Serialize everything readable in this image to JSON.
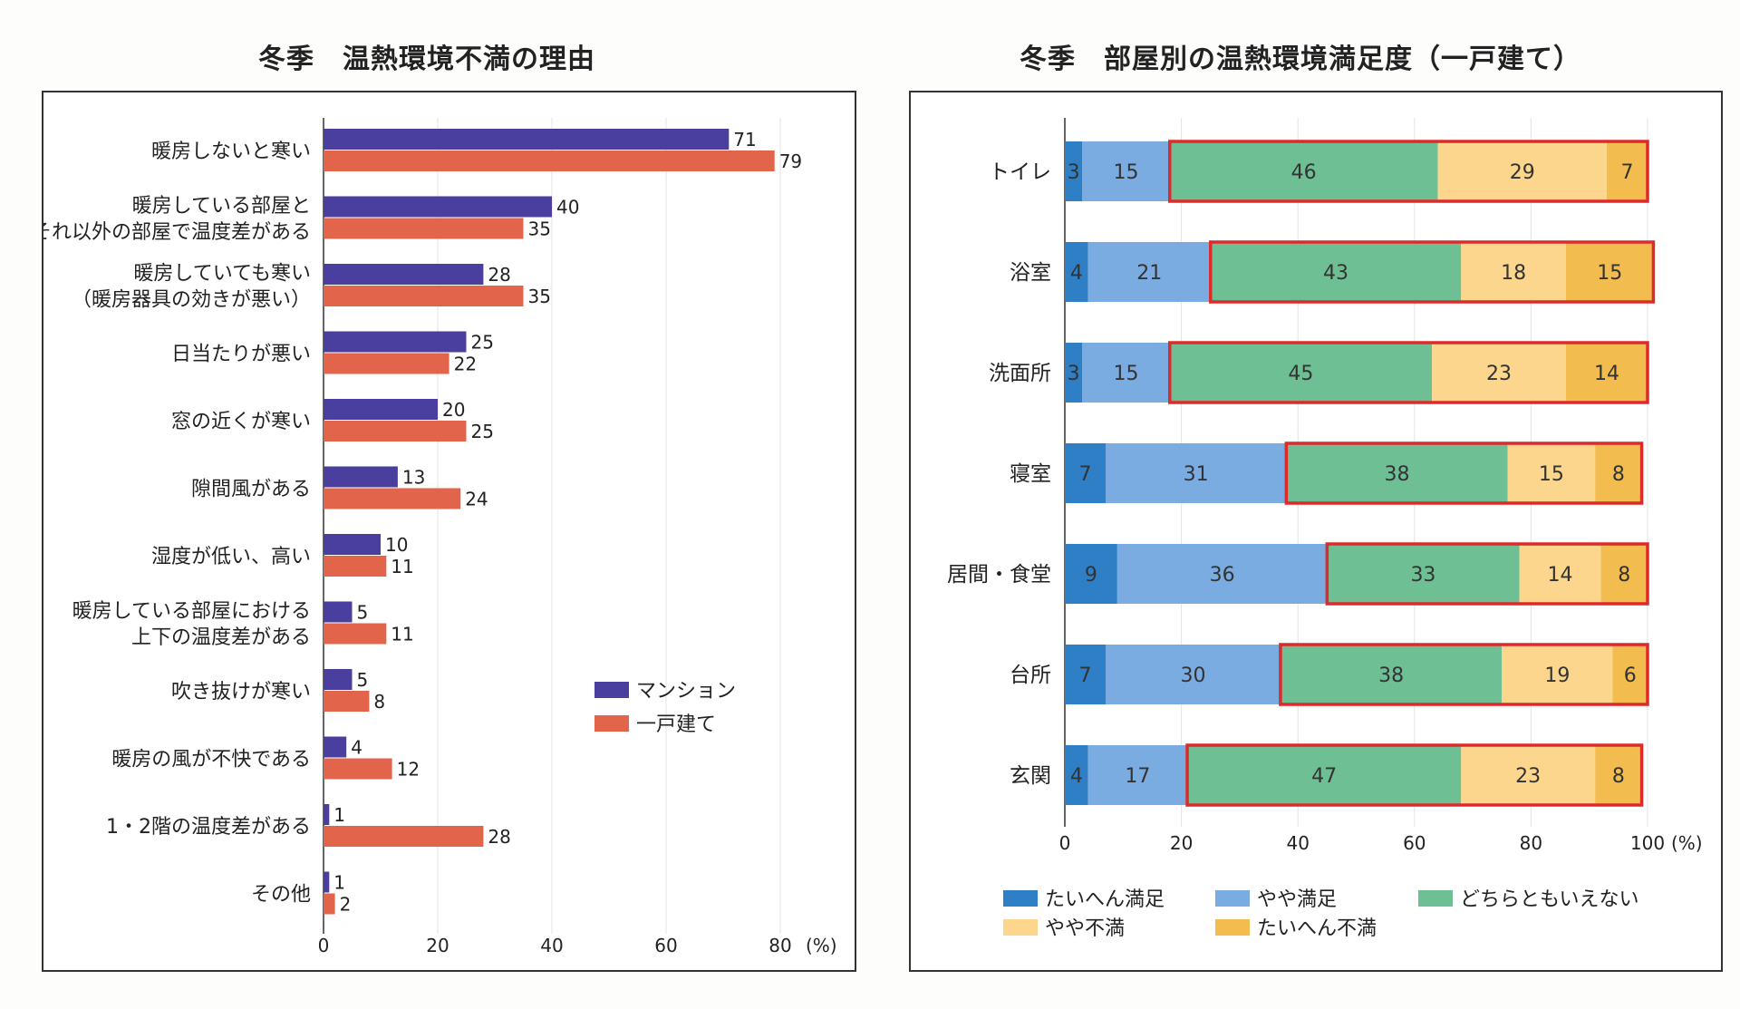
{
  "charts": {
    "left_title": "冬季　温熱環境不満の理由",
    "right_title": "冬季　部屋別の温熱環境満足度（一戸建て）"
  },
  "chart_data": [
    {
      "type": "bar",
      "orientation": "horizontal",
      "title": "冬季　温熱環境不満の理由",
      "categories": [
        [
          "暖房しないと寒い"
        ],
        [
          "暖房している部屋と",
          "それ以外の部屋で温度差がある"
        ],
        [
          "暖房していても寒い",
          "（暖房器具の効きが悪い）"
        ],
        [
          "日当たりが悪い"
        ],
        [
          "窓の近くが寒い"
        ],
        [
          "隙間風がある"
        ],
        [
          "湿度が低い、高い"
        ],
        [
          "暖房している部屋における",
          "上下の温度差がある"
        ],
        [
          "吹き抜けが寒い"
        ],
        [
          "暖房の風が不快である"
        ],
        [
          "1・2階の温度差がある"
        ],
        [
          "その他"
        ]
      ],
      "series": [
        {
          "name": "マンション",
          "color": "#4a3f9e",
          "values": [
            71,
            40,
            28,
            25,
            20,
            13,
            10,
            5,
            5,
            4,
            1,
            1
          ]
        },
        {
          "name": "一戸建て",
          "color": "#e2644a",
          "values": [
            79,
            35,
            35,
            22,
            25,
            24,
            11,
            11,
            8,
            12,
            28,
            2
          ]
        }
      ],
      "xlim": [
        0,
        80
      ],
      "xticks": [
        "0",
        "20",
        "40",
        "60",
        "80"
      ],
      "unit": "(%)",
      "grid": true,
      "legend": "bottom-right"
    },
    {
      "type": "bar",
      "orientation": "horizontal",
      "stacked": true,
      "title": "冬季　部屋別の温熱環境満足度（一戸建て）",
      "categories": [
        "トイレ",
        "浴室",
        "洗面所",
        "寝室",
        "居間・食堂",
        "台所",
        "玄関"
      ],
      "series": [
        {
          "name": "たいへん満足",
          "color": "#2f7fc6",
          "values": [
            3,
            4,
            3,
            7,
            9,
            7,
            4
          ]
        },
        {
          "name": "やや満足",
          "color": "#7aace2",
          "values": [
            15,
            21,
            15,
            31,
            36,
            30,
            17
          ]
        },
        {
          "name": "どちらともいえない",
          "color": "#6ebf93",
          "values": [
            46,
            43,
            45,
            38,
            33,
            38,
            47
          ]
        },
        {
          "name": "やや不満",
          "color": "#fbd68c",
          "values": [
            29,
            18,
            23,
            15,
            14,
            19,
            23
          ]
        },
        {
          "name": "たいへん不満",
          "color": "#f2bc4f",
          "values": [
            7,
            15,
            14,
            8,
            8,
            6,
            8
          ]
        }
      ],
      "highlight": {
        "description": "red outline around dissatisfied-side segments",
        "color": "#dd2a2a"
      },
      "xlim": [
        0,
        100
      ],
      "xticks": [
        "0",
        "20",
        "40",
        "60",
        "80",
        "100"
      ],
      "unit": "(%)",
      "grid": true,
      "legend": "bottom"
    }
  ]
}
